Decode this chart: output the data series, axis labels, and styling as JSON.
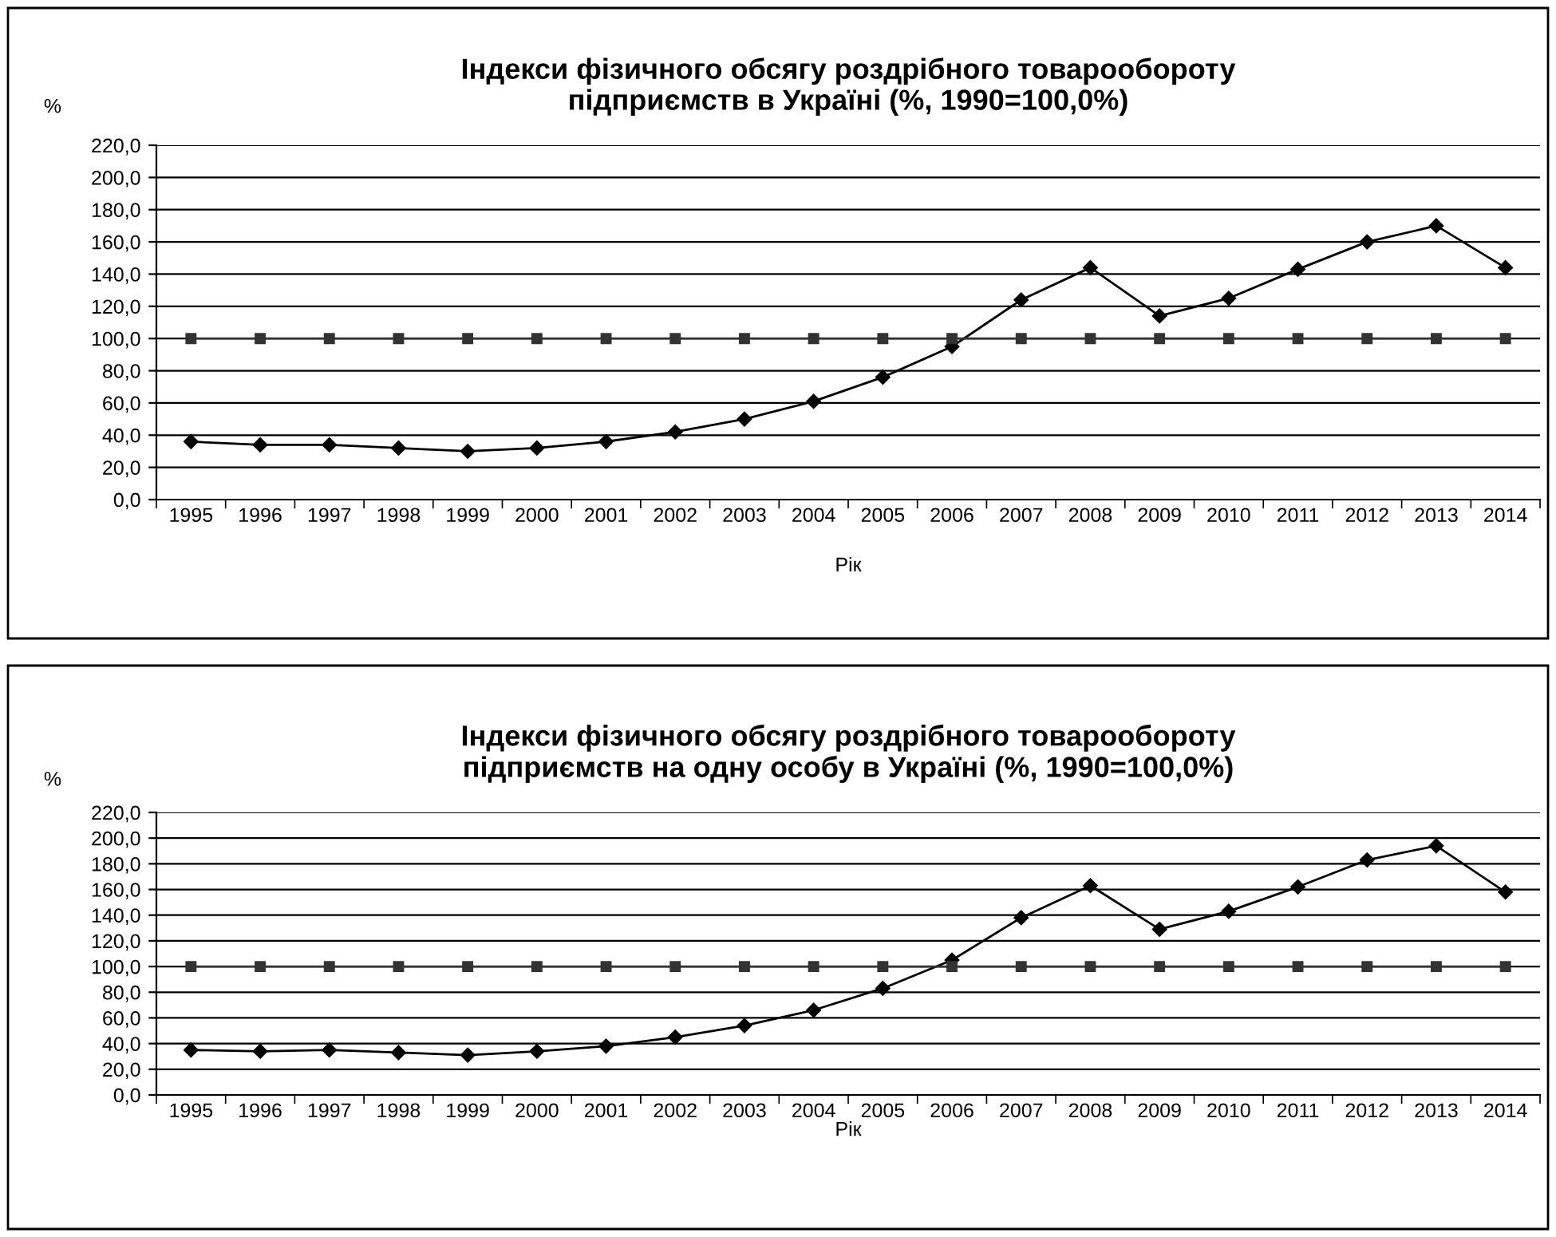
{
  "chart_data": [
    {
      "type": "line",
      "title": "Індекси фізичного обсягу роздрібного товарообороту\nпідприємств в Україні (%, 1990=100,0%)",
      "ylabel": "%",
      "xlabel": "Рік",
      "categories": [
        "1995",
        "1996",
        "1997",
        "1998",
        "1999",
        "2000",
        "2001",
        "2002",
        "2003",
        "2004",
        "2005",
        "2006",
        "2007",
        "2008",
        "2009",
        "2010",
        "2011",
        "2012",
        "2013",
        "2014"
      ],
      "series": [
        {
          "color": "#000000",
          "marker": "diamond",
          "values": [
            36,
            34,
            34,
            32,
            30,
            32,
            36,
            42,
            50,
            61,
            76,
            95,
            124,
            144,
            114,
            125,
            143,
            160,
            170,
            144
          ]
        },
        {
          "color": "#333333",
          "marker": "square",
          "values": [
            100,
            100,
            100,
            100,
            100,
            100,
            100,
            100,
            100,
            100,
            100,
            100,
            100,
            100,
            100,
            100,
            100,
            100,
            100,
            100
          ]
        }
      ],
      "ylim": [
        0,
        220
      ],
      "yticks": [
        {
          "value": 0,
          "label": "0,0"
        },
        {
          "value": 20,
          "label": "20,0"
        },
        {
          "value": 40,
          "label": "40,0"
        },
        {
          "value": 60,
          "label": "60,0"
        },
        {
          "value": 80,
          "label": "80,0"
        },
        {
          "value": 100,
          "label": "100,0"
        },
        {
          "value": 120,
          "label": "120,0"
        },
        {
          "value": 140,
          "label": "140,0"
        },
        {
          "value": 160,
          "label": "160,0"
        },
        {
          "value": 180,
          "label": "180,0"
        },
        {
          "value": 200,
          "label": "200,0"
        },
        {
          "value": 220,
          "label": "220,0"
        }
      ],
      "grid": "y",
      "legend": false
    },
    {
      "type": "line",
      "title": "Індекси фізичного обсягу роздрібного товарообороту\nпідприємств на одну особу в Україні (%, 1990=100,0%)",
      "ylabel": "%",
      "xlabel": "Рік",
      "categories": [
        "1995",
        "1996",
        "1997",
        "1998",
        "1999",
        "2000",
        "2001",
        "2002",
        "2003",
        "2004",
        "2005",
        "2006",
        "2007",
        "2008",
        "2009",
        "2010",
        "2011",
        "2012",
        "2013",
        "2014"
      ],
      "series": [
        {
          "color": "#000000",
          "marker": "diamond",
          "values": [
            35,
            34,
            35,
            33,
            31,
            34,
            38,
            45,
            54,
            66,
            83,
            105,
            138,
            163,
            129,
            143,
            162,
            183,
            194,
            158
          ]
        },
        {
          "color": "#333333",
          "marker": "square",
          "values": [
            100,
            100,
            100,
            100,
            100,
            100,
            100,
            100,
            100,
            100,
            100,
            100,
            100,
            100,
            100,
            100,
            100,
            100,
            100,
            100
          ]
        }
      ],
      "ylim": [
        0,
        220
      ],
      "yticks": [
        {
          "value": 0,
          "label": "0,0"
        },
        {
          "value": 20,
          "label": "20,0"
        },
        {
          "value": 40,
          "label": "40,0"
        },
        {
          "value": 60,
          "label": "60,0"
        },
        {
          "value": 80,
          "label": "80,0"
        },
        {
          "value": 100,
          "label": "100,0"
        },
        {
          "value": 120,
          "label": "120,0"
        },
        {
          "value": 140,
          "label": "140,0"
        },
        {
          "value": 160,
          "label": "160,0"
        },
        {
          "value": 180,
          "label": "180,0"
        },
        {
          "value": 200,
          "label": "200,0"
        },
        {
          "value": 220,
          "label": "220,0"
        }
      ],
      "grid": "y",
      "legend": false
    }
  ]
}
